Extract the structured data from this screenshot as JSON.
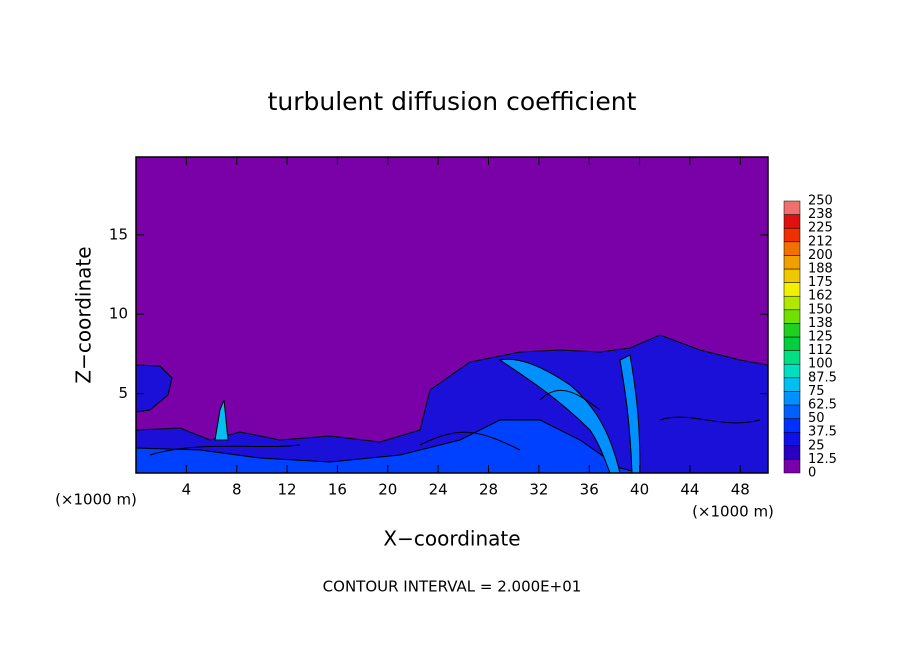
{
  "chart_data": {
    "type": "contour",
    "title": "turbulent diffusion coefficient",
    "x_label": "X−coordinate",
    "y_label": "Z−coordinate",
    "x_unit": "(×1000 m)",
    "y_unit": "(×1000 m)",
    "annotation": "CONTOUR INTERVAL = 2.000E+01",
    "xlim": [
      0,
      50.2
    ],
    "xticks": [
      4,
      8,
      12,
      16,
      20,
      24,
      28,
      32,
      36,
      40,
      44,
      48
    ],
    "ylim": [
      0,
      19.9
    ],
    "yticks": [
      5,
      10,
      15
    ],
    "colorbar": {
      "ticks": [
        0,
        12.5,
        25,
        37.5,
        50,
        62.5,
        75,
        87.5,
        100,
        112,
        125,
        138,
        150,
        162,
        175,
        188,
        200,
        212,
        225,
        238,
        250
      ],
      "colors": [
        "#7a00a8",
        "#2a00c0",
        "#1010e8",
        "#0030ff",
        "#0060ff",
        "#0090ff",
        "#00c0f0",
        "#00e0c0",
        "#00e080",
        "#00d040",
        "#20d020",
        "#70e000",
        "#b0e800",
        "#f0f000",
        "#f0c800",
        "#f0a000",
        "#f07000",
        "#f03000",
        "#e01010",
        "#f07070"
      ]
    }
  }
}
